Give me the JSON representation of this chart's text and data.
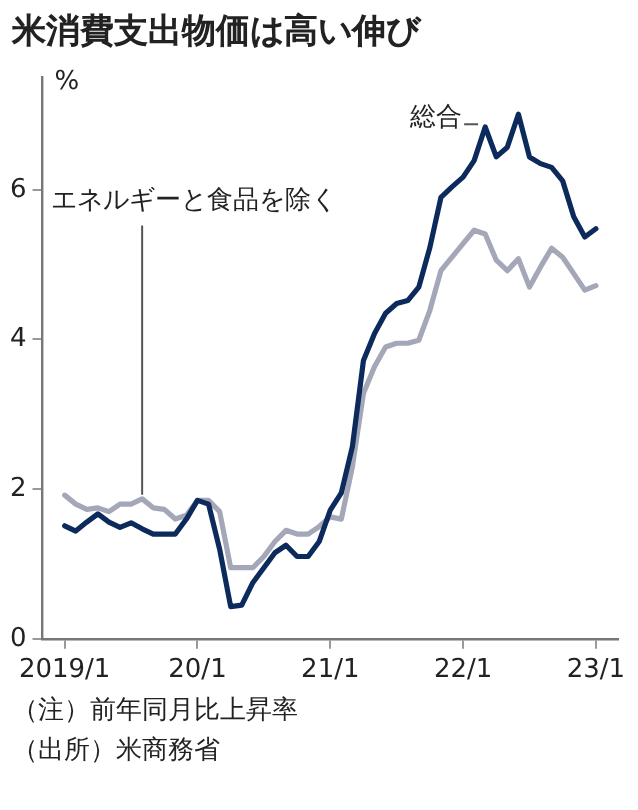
{
  "chart_data": {
    "type": "line",
    "title": "米消費支出物価は高い伸び",
    "ylabel": "%",
    "x": [
      "2019-01",
      "2019-02",
      "2019-03",
      "2019-04",
      "2019-05",
      "2019-06",
      "2019-07",
      "2019-08",
      "2019-09",
      "2019-10",
      "2019-11",
      "2019-12",
      "2020-01",
      "2020-02",
      "2020-03",
      "2020-04",
      "2020-05",
      "2020-06",
      "2020-07",
      "2020-08",
      "2020-09",
      "2020-10",
      "2020-11",
      "2020-12",
      "2021-01",
      "2021-02",
      "2021-03",
      "2021-04",
      "2021-05",
      "2021-06",
      "2021-07",
      "2021-08",
      "2021-09",
      "2021-10",
      "2021-11",
      "2021-12",
      "2022-01",
      "2022-02",
      "2022-03",
      "2022-04",
      "2022-05",
      "2022-06",
      "2022-07",
      "2022-08",
      "2022-09",
      "2022-10",
      "2022-11",
      "2022-12",
      "2023-01"
    ],
    "series": [
      {
        "name": "総合",
        "color": "#0d2a5c",
        "values": [
          1.51,
          1.44,
          1.56,
          1.67,
          1.56,
          1.49,
          1.55,
          1.47,
          1.4,
          1.4,
          1.4,
          1.6,
          1.85,
          1.8,
          1.2,
          0.43,
          0.45,
          0.75,
          0.95,
          1.15,
          1.25,
          1.1,
          1.1,
          1.3,
          1.72,
          1.95,
          2.57,
          3.72,
          4.08,
          4.35,
          4.48,
          4.52,
          4.7,
          5.23,
          5.9,
          6.04,
          6.17,
          6.39,
          6.84,
          6.44,
          6.57,
          7.01,
          6.44,
          6.35,
          6.3,
          6.12,
          5.64,
          5.37,
          5.48
        ]
      },
      {
        "name": "エネルギーと食品を除く",
        "color": "#a3a7b8",
        "values": [
          1.92,
          1.8,
          1.73,
          1.75,
          1.7,
          1.8,
          1.8,
          1.87,
          1.75,
          1.73,
          1.6,
          1.65,
          1.85,
          1.85,
          1.7,
          0.95,
          0.95,
          0.95,
          1.1,
          1.3,
          1.45,
          1.4,
          1.4,
          1.5,
          1.63,
          1.6,
          2.3,
          3.28,
          3.64,
          3.9,
          3.95,
          3.95,
          3.99,
          4.39,
          4.92,
          5.1,
          5.28,
          5.46,
          5.41,
          5.06,
          4.92,
          5.08,
          4.7,
          4.97,
          5.22,
          5.1,
          4.88,
          4.66,
          4.72
        ]
      }
    ],
    "xlim": [
      "2018-11",
      "2023-03"
    ],
    "xticks": [
      {
        "value": "2019-01",
        "label": "2019/1"
      },
      {
        "value": "2020-01",
        "label": "20/1"
      },
      {
        "value": "2021-01",
        "label": "21/1"
      },
      {
        "value": "2022-01",
        "label": "22/1"
      },
      {
        "value": "2023-01",
        "label": "23/1"
      }
    ],
    "ylim": [
      0,
      7.5
    ],
    "yticks": [
      0,
      2,
      4,
      6
    ],
    "grid": false,
    "legend": false,
    "marker": "none",
    "line_style": "solid",
    "annotations": [
      "（注）前年同月比上昇率",
      "（出所）米商務省"
    ]
  }
}
